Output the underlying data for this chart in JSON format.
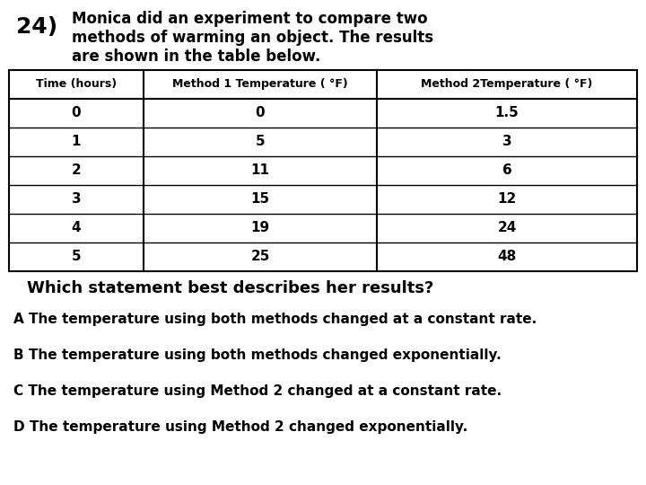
{
  "question_number": "24)",
  "question_text_line1": "Monica did an experiment to compare two",
  "question_text_line2": "methods of warming an object. The results",
  "question_text_line3": "are shown in the table below.",
  "table_headers": [
    "Time (hours)",
    "Method 1 Temperature ( °F)",
    "Method 2Temperature ( °F)"
  ],
  "table_data": [
    [
      "0",
      "0",
      "1.5"
    ],
    [
      "1",
      "5",
      "3"
    ],
    [
      "2",
      "11",
      "6"
    ],
    [
      "3",
      "15",
      "12"
    ],
    [
      "4",
      "19",
      "24"
    ],
    [
      "5",
      "25",
      "48"
    ]
  ],
  "question2": "Which statement best describes her results?",
  "answer_A": "A The temperature using both methods changed at a constant rate.",
  "answer_B": "B The temperature using both methods changed exponentially.",
  "answer_C": "C The temperature using Method 2 changed at a constant rate.",
  "answer_D": "D The temperature using Method 2 changed exponentially.",
  "bg_color": "#ffffff",
  "text_color": "#000000",
  "table_border_color": "#000000",
  "qnum_fontsize": 18,
  "qtext_fontsize": 12,
  "header_fontsize": 9,
  "data_fontsize": 11,
  "q2_fontsize": 13,
  "ans_fontsize": 11
}
